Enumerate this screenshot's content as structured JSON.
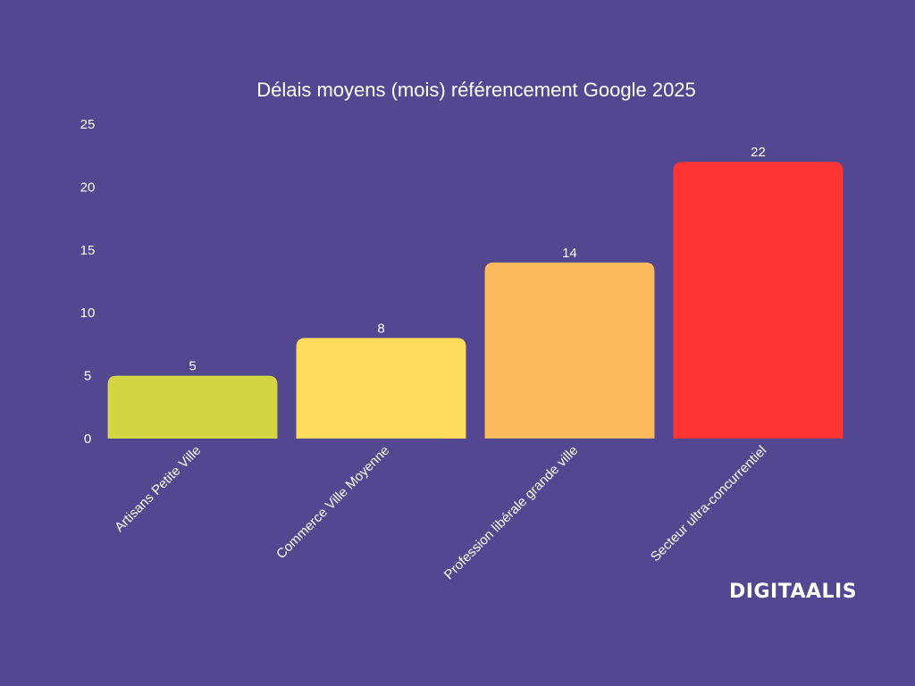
{
  "brand": {
    "logo_text": "DIGITAALIS"
  },
  "chart_data": {
    "type": "bar",
    "title": "Délais moyens (mois) référencement Google 2025",
    "xlabel": "",
    "ylabel": "",
    "categories": [
      "Artisans Petite Ville",
      "Commerce Ville Moyenne",
      "Profession libérale grande ville",
      "Secteur ultra-concurrentiel"
    ],
    "values": [
      5,
      8,
      14,
      22
    ],
    "colors": [
      "#d4d641",
      "#ffdc5c",
      "#fdba5c",
      "#ff3434"
    ],
    "ylim": [
      0,
      25
    ],
    "yticks": [
      0,
      5,
      10,
      15,
      20,
      25
    ],
    "data_labels": true,
    "grid": false,
    "legend": "none"
  }
}
